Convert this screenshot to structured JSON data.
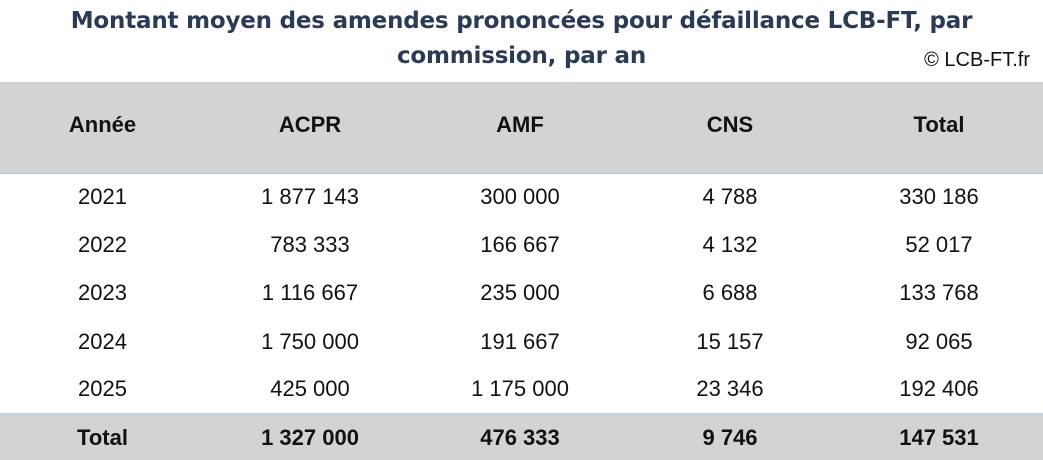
{
  "header": {
    "title": "Montant moyen des amendes prononcées pour défaillance LCB-FT, par commission, par an",
    "copyright": "© LCB-FT.fr"
  },
  "table": {
    "columns": [
      "Année",
      "ACPR",
      "AMF",
      "CNS",
      "Total"
    ],
    "rows": [
      [
        "2021",
        "1 877 143",
        "300 000",
        "4 788",
        "330 186"
      ],
      [
        "2022",
        "783 333",
        "166 667",
        "4 132",
        "52 017"
      ],
      [
        "2023",
        "1 116 667",
        "235 000",
        "6 688",
        "133 768"
      ],
      [
        "2024",
        "1 750 000",
        "191 667",
        "15 157",
        "92 065"
      ],
      [
        "2025",
        "425 000",
        "1 175 000",
        "23 346",
        "192 406"
      ]
    ],
    "total_row": [
      "Total",
      "1 327 000",
      "476 333",
      "9 746",
      "147 531"
    ]
  },
  "colors": {
    "title": "#2b3a55",
    "header_bg": "#d3d3d3",
    "total_bg": "#d3d3d3",
    "divider": "#a9c4de"
  },
  "chart_data": {
    "type": "table",
    "title": "Montant moyen des amendes prononcées pour défaillance LCB-FT, par commission, par an",
    "annotation": "© LCB-FT.fr",
    "columns": [
      "Année",
      "ACPR",
      "AMF",
      "CNS",
      "Total"
    ],
    "categories": [
      "2021",
      "2022",
      "2023",
      "2024",
      "2025"
    ],
    "series": [
      {
        "name": "ACPR",
        "values": [
          1877143,
          783333,
          1116667,
          1750000,
          425000
        ],
        "total": 1327000
      },
      {
        "name": "AMF",
        "values": [
          300000,
          166667,
          235000,
          191667,
          1175000
        ],
        "total": 476333
      },
      {
        "name": "CNS",
        "values": [
          4788,
          4132,
          6688,
          15157,
          23346
        ],
        "total": 9746
      },
      {
        "name": "Total",
        "values": [
          330186,
          52017,
          133768,
          92065,
          192406
        ],
        "total": 147531
      }
    ]
  }
}
